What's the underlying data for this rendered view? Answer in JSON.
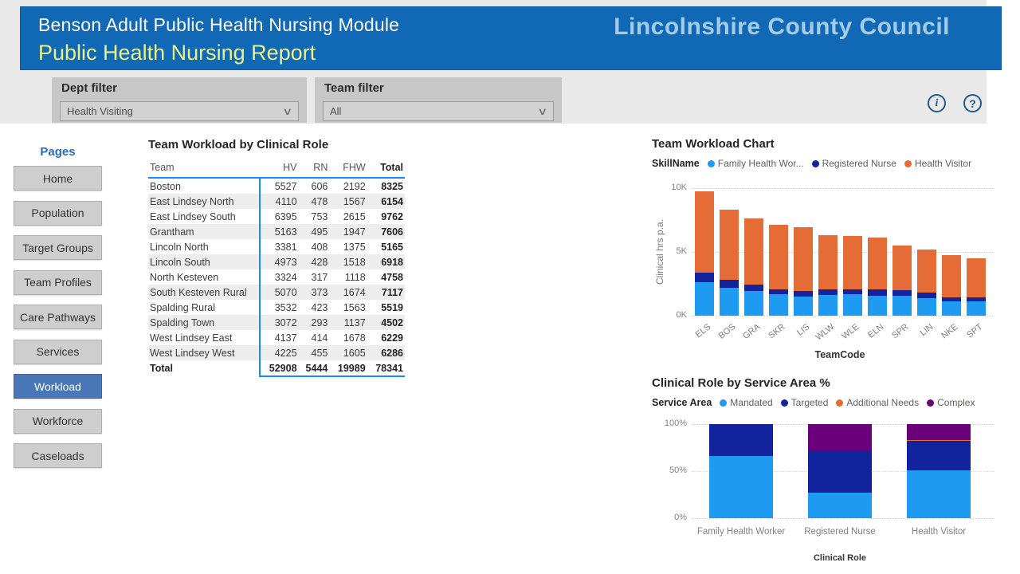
{
  "header": {
    "module_title": "Benson Adult Public Health Nursing Module",
    "report_title": "Public Health Nursing Report",
    "org_name": "Lincolnshire County Council"
  },
  "filters": {
    "dept": {
      "label": "Dept filter",
      "value": "Health Visiting"
    },
    "team": {
      "label": "Team filter",
      "value": "All"
    },
    "chevron_glyph": "∨"
  },
  "toolbar": {
    "info_glyph": "i",
    "help_glyph": "?"
  },
  "sidebar": {
    "title": "Pages",
    "items": [
      {
        "label": "Home",
        "selected": false
      },
      {
        "label": "Population",
        "selected": false
      },
      {
        "label": "Target Groups",
        "selected": false
      },
      {
        "label": "Team Profiles",
        "selected": false
      },
      {
        "label": "Care Pathways",
        "selected": false
      },
      {
        "label": "Services",
        "selected": false
      },
      {
        "label": "Workload",
        "selected": true
      },
      {
        "label": "Workforce",
        "selected": false
      },
      {
        "label": "Caseloads",
        "selected": false
      }
    ]
  },
  "table": {
    "title": "Team Workload by Clinical Role",
    "columns": [
      "Team",
      "HV",
      "RN",
      "FHW",
      "Total"
    ],
    "rows": [
      [
        "Boston",
        5527,
        606,
        2192,
        8325
      ],
      [
        "East Lindsey North",
        4110,
        478,
        1567,
        6154
      ],
      [
        "East Lindsey South",
        6395,
        753,
        2615,
        9762
      ],
      [
        "Grantham",
        5163,
        495,
        1947,
        7606
      ],
      [
        "Lincoln North",
        3381,
        408,
        1375,
        5165
      ],
      [
        "Lincoln South",
        4973,
        428,
        1518,
        6918
      ],
      [
        "North Kesteven",
        3324,
        317,
        1118,
        4758
      ],
      [
        "South Kesteven Rural",
        5070,
        373,
        1674,
        7117
      ],
      [
        "Spalding Rural",
        3532,
        423,
        1563,
        5519
      ],
      [
        "Spalding Town",
        3072,
        293,
        1137,
        4502
      ],
      [
        "West Lindsey East",
        4137,
        414,
        1678,
        6229
      ],
      [
        "West Lindsey West",
        4225,
        455,
        1605,
        6286
      ]
    ],
    "total_row": [
      "Total",
      52908,
      5444,
      19989,
      78341
    ]
  },
  "chart_data": [
    {
      "type": "bar",
      "stacked": true,
      "title": "Team Workload Chart",
      "legend_title": "SkillName",
      "legend_labels": [
        "Family Health Wor...",
        "Registered Nurse",
        "Health Visitor"
      ],
      "categories": [
        "ELS",
        "BOS",
        "GRA",
        "SKR",
        "LIS",
        "WLW",
        "WLE",
        "ELN",
        "SPR",
        "LIN",
        "NKE",
        "SPT"
      ],
      "series": [
        {
          "name": "Family Health Worker",
          "color": "#1e9af0",
          "values": [
            2615,
            2192,
            1947,
            1674,
            1518,
            1605,
            1678,
            1567,
            1563,
            1375,
            1118,
            1137
          ]
        },
        {
          "name": "Registered Nurse",
          "color": "#12239e",
          "values": [
            753,
            606,
            495,
            373,
            428,
            455,
            414,
            478,
            423,
            408,
            317,
            293
          ]
        },
        {
          "name": "Health Visitor",
          "color": "#e66c37",
          "values": [
            6395,
            5527,
            5163,
            5070,
            4973,
            4225,
            4137,
            4110,
            3532,
            3381,
            3324,
            3072
          ]
        }
      ],
      "xlabel": "TeamCode",
      "ylabel": "Clinical hrs p.a.",
      "ylim": [
        0,
        10000
      ],
      "yticks": [
        "0K",
        "5K",
        "10K"
      ],
      "grid": "dotted horizontal",
      "legend_position": "top"
    },
    {
      "type": "bar",
      "stacked": true,
      "percent": true,
      "title": "Clinical Role by Service Area %",
      "legend_title": "Service Area",
      "legend_labels": [
        "Mandated",
        "Targeted",
        "Additional Needs",
        "Complex"
      ],
      "categories": [
        "Family Health Worker",
        "Registered Nurse",
        "Health Visitor"
      ],
      "series": [
        {
          "name": "Mandated",
          "color": "#1e9af0",
          "values": [
            66,
            27,
            51
          ]
        },
        {
          "name": "Targeted",
          "color": "#12239e",
          "values": [
            34,
            44,
            31
          ]
        },
        {
          "name": "Additional Needs",
          "color": "#e66c37",
          "values": [
            0,
            0,
            1
          ]
        },
        {
          "name": "Complex",
          "color": "#6b007b",
          "values": [
            0,
            29,
            17
          ]
        }
      ],
      "xlabel": "Clinical Role",
      "ylim": [
        0,
        100
      ],
      "yticks": [
        "0%",
        "50%",
        "100%"
      ],
      "grid": "dotted horizontal",
      "legend_position": "top"
    }
  ],
  "colors": {
    "header_bg": "#1168b4",
    "report_title_text": "#e9f188",
    "org_text": "#a3cceb",
    "accent_line": "#118dff",
    "selected_page_bg": "#4a77b7",
    "series_blue": "#1e9af0",
    "series_navy": "#12239e",
    "series_orange": "#e66c37",
    "series_purple": "#6b007b"
  }
}
